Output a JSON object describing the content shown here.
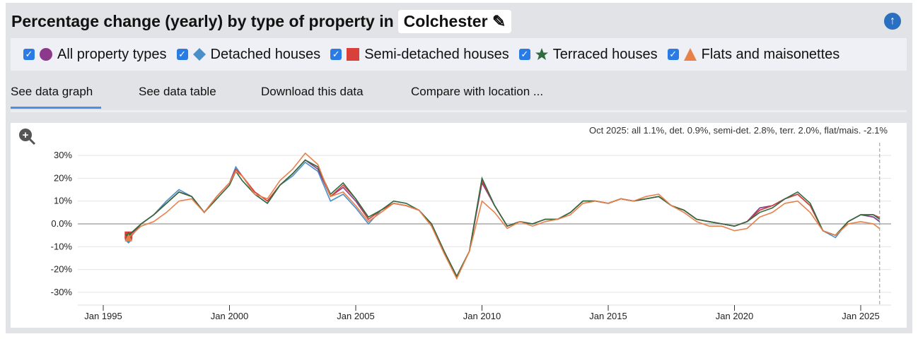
{
  "header": {
    "title": "Percentage change (yearly) by type of property in",
    "location": "Colchester",
    "edit_icon": "edit-icon",
    "scroll_top_icon": "arrow-up-circle-icon"
  },
  "tabs": [
    {
      "label": "See data graph",
      "active": true
    },
    {
      "label": "See data table"
    },
    {
      "label": "Download this data"
    },
    {
      "label": "Compare with location ..."
    }
  ],
  "chart_data": {
    "type": "line",
    "annotation": "Oct 2025: all 1.1%, det. 0.9%, semi-det. 2.8%, terr. 2.0%, flat/mais. -2.1%",
    "x_ticks": [
      {
        "value": 1995,
        "label": "Jan 1995"
      },
      {
        "value": 2000,
        "label": "Jan 2000"
      },
      {
        "value": 2005,
        "label": "Jan 2005"
      },
      {
        "value": 2010,
        "label": "Jan 2010"
      },
      {
        "value": 2015,
        "label": "Jan 2015"
      },
      {
        "value": 2020,
        "label": "Jan 2020"
      },
      {
        "value": 2025,
        "label": "Jan 2025"
      }
    ],
    "y_ticks": [
      {
        "value": 30,
        "label": "30%"
      },
      {
        "value": 20,
        "label": "20%"
      },
      {
        "value": 10,
        "label": "10%"
      },
      {
        "value": 0,
        "label": "0.0%"
      },
      {
        "value": -10,
        "label": "-10%"
      },
      {
        "value": -20,
        "label": "-20%"
      },
      {
        "value": -30,
        "label": "-30%"
      }
    ],
    "xlim": [
      1994.0,
      2025.9
    ],
    "ylim": [
      -35,
      33
    ],
    "grid": true,
    "x": [
      1996,
      1996.5,
      1997,
      1997.5,
      1998,
      1998.5,
      1999,
      1999.5,
      2000,
      2000.25,
      2000.5,
      2001,
      2001.5,
      2002,
      2002.5,
      2003,
      2003.5,
      2004,
      2004.5,
      2005,
      2005.5,
      2006,
      2006.5,
      2007,
      2007.5,
      2008,
      2008.5,
      2009,
      2009.5,
      2010,
      2010.5,
      2011,
      2011.5,
      2012,
      2012.5,
      2013,
      2013.5,
      2014,
      2014.5,
      2015,
      2015.5,
      2016,
      2016.5,
      2017,
      2017.5,
      2018,
      2018.5,
      2019,
      2019.5,
      2020,
      2020.5,
      2021,
      2021.5,
      2022,
      2022.5,
      2023,
      2023.5,
      2024,
      2024.5,
      2025,
      2025.5,
      2025.75
    ],
    "series": [
      {
        "name": "Detached houses",
        "color": "#4a90c8",
        "marker": "diamond",
        "values": [
          -7,
          0,
          4,
          10,
          15,
          12,
          5,
          12,
          18,
          25,
          21,
          13,
          9,
          17,
          21,
          27,
          23,
          10,
          13,
          7,
          0,
          6,
          9,
          8,
          6,
          0,
          -12,
          -23,
          -12,
          19,
          8,
          -1,
          1,
          0,
          2,
          2,
          5,
          10,
          10,
          9,
          11,
          10,
          11,
          12,
          8,
          6,
          2,
          1,
          0,
          -1,
          1,
          6,
          8,
          11,
          13,
          8,
          -3,
          -6,
          1,
          4,
          3,
          0.9
        ]
      },
      {
        "name": "All property types",
        "color": "#8b3a8b",
        "marker": "circle",
        "values": [
          -6,
          0,
          4,
          9,
          14,
          12,
          5,
          12,
          18,
          24,
          21,
          14,
          10,
          17,
          22,
          28,
          24,
          12,
          16,
          10,
          2,
          6,
          9,
          8,
          6,
          0,
          -12,
          -23,
          -12,
          18,
          8,
          -1,
          1,
          0,
          2,
          2,
          5,
          10,
          10,
          9,
          11,
          10,
          11,
          12,
          8,
          6,
          2,
          1,
          0,
          -1,
          1,
          7,
          8,
          11,
          13,
          8,
          -3,
          -5,
          1,
          4,
          3,
          1.1
        ]
      },
      {
        "name": "Semi-detached houses",
        "color": "#d9403a",
        "marker": "square",
        "values": [
          -5,
          0,
          4,
          9,
          14,
          12,
          5,
          12,
          18,
          24,
          21,
          14,
          10,
          17,
          22,
          28,
          25,
          12,
          17,
          11,
          2,
          6,
          9,
          8,
          6,
          0,
          -12,
          -23,
          -12,
          19,
          8,
          -1,
          1,
          0,
          2,
          2,
          5,
          10,
          10,
          9,
          11,
          10,
          11,
          12,
          8,
          6,
          2,
          1,
          0,
          -1,
          1,
          6,
          8,
          11,
          13,
          8,
          -3,
          -5,
          1,
          4,
          4,
          2.8
        ]
      },
      {
        "name": "Terraced houses",
        "color": "#2e6b3f",
        "marker": "star",
        "values": [
          -5,
          0,
          4,
          9,
          14,
          12,
          5,
          11,
          17,
          23,
          19,
          13,
          9,
          17,
          22,
          28,
          25,
          13,
          18,
          11,
          3,
          6,
          10,
          9,
          6,
          0,
          -12,
          -23,
          -12,
          20,
          8,
          -1,
          1,
          0,
          2,
          2,
          5,
          10,
          10,
          9,
          11,
          10,
          11,
          12,
          8,
          6,
          2,
          1,
          0,
          -1,
          1,
          5,
          7,
          11,
          14,
          9,
          -3,
          -5,
          1,
          4,
          4,
          2.0
        ]
      },
      {
        "name": "Flats and maisonettes",
        "color": "#e8804a",
        "marker": "triangle",
        "values": [
          -6,
          -1,
          1,
          5,
          10,
          11,
          5,
          12,
          18,
          23,
          21,
          13,
          11,
          19,
          24,
          31,
          26,
          12,
          14,
          8,
          1,
          5,
          9,
          8,
          6,
          -1,
          -13,
          -24,
          -12,
          10,
          5,
          -2,
          1,
          -1,
          1,
          2,
          4,
          9,
          10,
          9,
          11,
          10,
          12,
          13,
          8,
          5,
          1,
          -1,
          -1,
          -3,
          -2,
          3,
          5,
          9,
          10,
          5,
          -3,
          -5,
          0,
          1,
          0,
          -2.1
        ]
      }
    ]
  },
  "legend_order": [
    1,
    0,
    2,
    3,
    4
  ]
}
